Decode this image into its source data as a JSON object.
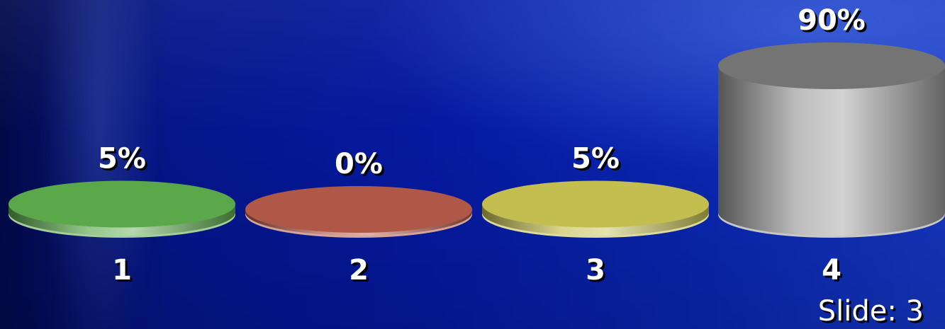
{
  "chart_data": {
    "type": "bar",
    "style": "3d-cylinder",
    "categories": [
      "1",
      "2",
      "3",
      "4"
    ],
    "values": [
      5,
      0,
      5,
      90
    ],
    "value_labels": [
      "5%",
      "0%",
      "5%",
      "90%"
    ],
    "unit": "%",
    "ylim": [
      0,
      100
    ],
    "grid": false,
    "legend": "none",
    "title": "",
    "xlabel": "",
    "ylabel": "",
    "colors": [
      "#5aa84a",
      "#b05848",
      "#c4be50",
      "#9a9a9a"
    ]
  },
  "footer": {
    "slide_label": "Slide: 3"
  }
}
